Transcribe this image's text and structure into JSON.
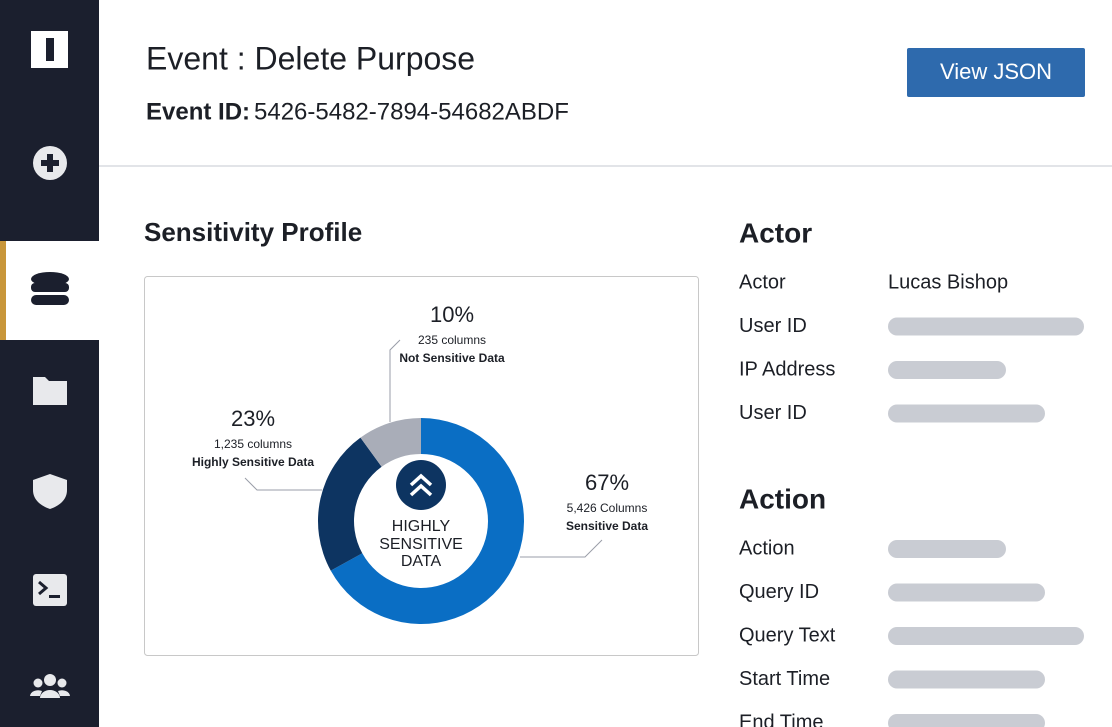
{
  "header": {
    "title": "Event : Delete Purpose",
    "event_id_label": "Event ID:",
    "event_id": "5426-5482-7894-54682ABDF",
    "button": "View JSON"
  },
  "profile": {
    "title": "Sensitivity Profile",
    "center_label": [
      "HIGHLY",
      "SENSITIVE",
      "DATA"
    ],
    "donut": {
      "type": "pie",
      "categories": [
        "Sensitive Data",
        "Highly Sensitive Data",
        "Not Sensitive Data"
      ],
      "values": [
        67,
        23,
        10
      ],
      "value_labels": [
        "67%",
        "23%",
        "10%"
      ],
      "details": [
        "5,426 Columns",
        "1,235 columns",
        "235 columns"
      ],
      "colors": [
        "#0a6ec4",
        "#0d3461",
        "#a9adb8"
      ]
    }
  },
  "actor": {
    "title": "Actor",
    "rows": [
      {
        "label": "Actor",
        "value": "Lucas Bishop"
      },
      {
        "label": "User ID"
      },
      {
        "label": "IP Address"
      },
      {
        "label": "User ID"
      }
    ]
  },
  "action": {
    "title": "Action",
    "rows": [
      {
        "label": "Action"
      },
      {
        "label": "Query ID"
      },
      {
        "label": "Query Text"
      },
      {
        "label": "Start Time"
      },
      {
        "label": "End Time"
      }
    ]
  }
}
